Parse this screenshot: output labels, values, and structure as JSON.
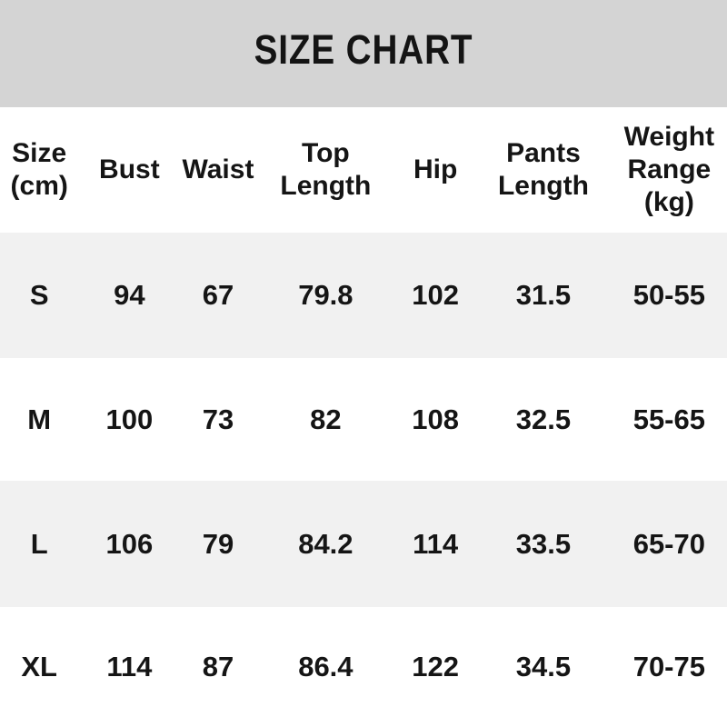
{
  "banner": {
    "title": "SIZE CHART"
  },
  "colors": {
    "banner_bg": "#d4d4d4",
    "alt_row_bg": "#f1f1f1",
    "page_bg": "#ffffff",
    "text": "#151515"
  },
  "table": {
    "headers": [
      {
        "id": "size",
        "label": "Size\n(cm)"
      },
      {
        "id": "bust",
        "label": "Bust"
      },
      {
        "id": "waist",
        "label": "Waist"
      },
      {
        "id": "top-length",
        "label": "Top\nLength"
      },
      {
        "id": "hip",
        "label": "Hip"
      },
      {
        "id": "pants-length",
        "label": "Pants\nLength"
      },
      {
        "id": "weight-range",
        "label": "Weight\nRange\n(kg)"
      }
    ],
    "rows": [
      [
        "S",
        "94",
        "67",
        "79.8",
        "102",
        "31.5",
        "50-55"
      ],
      [
        "M",
        "100",
        "73",
        "82",
        "108",
        "32.5",
        "55-65"
      ],
      [
        "L",
        "106",
        "79",
        "84.2",
        "114",
        "33.5",
        "65-70"
      ],
      [
        "XL",
        "114",
        "87",
        "86.4",
        "122",
        "34.5",
        "70-75"
      ]
    ]
  },
  "chart_data": {
    "type": "table",
    "title": "SIZE CHART",
    "columns": [
      "Size (cm)",
      "Bust",
      "Waist",
      "Top Length",
      "Hip",
      "Pants Length",
      "Weight Range (kg)"
    ],
    "rows": [
      {
        "size": "S",
        "bust": 94,
        "waist": 67,
        "top_length": 79.8,
        "hip": 102,
        "pants_length": 31.5,
        "weight_range": "50-55"
      },
      {
        "size": "M",
        "bust": 100,
        "waist": 73,
        "top_length": 82,
        "hip": 108,
        "pants_length": 32.5,
        "weight_range": "55-65"
      },
      {
        "size": "L",
        "bust": 106,
        "waist": 79,
        "top_length": 84.2,
        "hip": 114,
        "pants_length": 33.5,
        "weight_range": "65-70"
      },
      {
        "size": "XL",
        "bust": 114,
        "waist": 87,
        "top_length": 86.4,
        "hip": 122,
        "pants_length": 34.5,
        "weight_range": "70-75"
      }
    ]
  }
}
